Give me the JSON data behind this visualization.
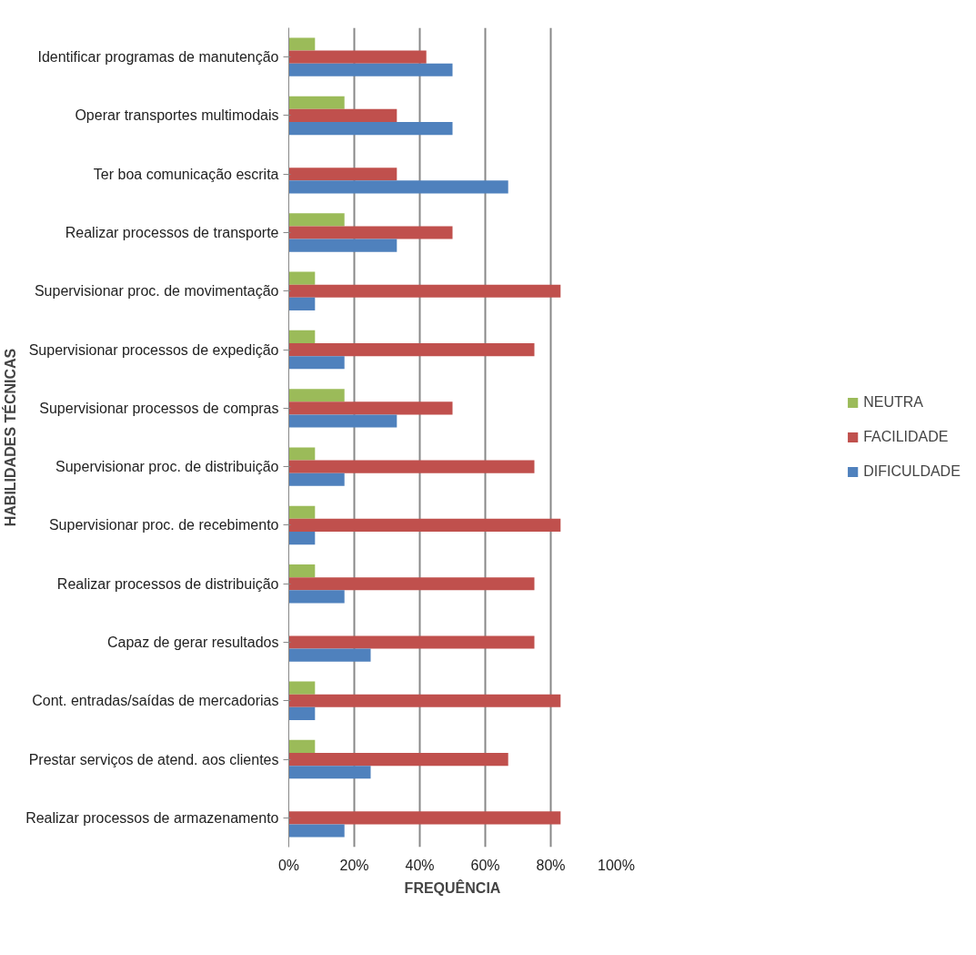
{
  "chart_data": {
    "type": "bar",
    "orientation": "horizontal",
    "xlabel": "FREQUÊNCIA",
    "ylabel": "HABILIDADES TÉCNICAS",
    "categories": [
      "Identificar programas de manutenção",
      "Operar transportes multimodais",
      "Ter boa comunicação escrita",
      "Realizar processos de transporte",
      "Supervisionar proc. de movimentação",
      "Supervisionar processos de expedição",
      "Supervisionar processos de compras",
      "Supervisionar proc. de distribuição",
      "Supervisionar proc. de recebimento",
      "Realizar processos de distribuição",
      "Capaz de gerar resultados",
      "Cont. entradas/saídas de mercadorias",
      "Prestar serviços de atend. aos clientes",
      "Realizar processos de armazenamento"
    ],
    "series": [
      {
        "name": "NEUTRA",
        "color": "#9bbb59",
        "values": [
          8,
          17,
          null,
          17,
          8,
          8,
          17,
          8,
          8,
          8,
          null,
          8,
          8,
          null
        ]
      },
      {
        "name": "FACILIDADE",
        "color": "#c0504d",
        "values": [
          42,
          33,
          33,
          50,
          83,
          75,
          50,
          75,
          83,
          75,
          75,
          83,
          67,
          83
        ]
      },
      {
        "name": "DIFICULDADE",
        "color": "#4f81bd",
        "values": [
          50,
          50,
          67,
          33,
          8,
          17,
          33,
          17,
          8,
          17,
          25,
          8,
          25,
          17
        ]
      }
    ],
    "xlim": [
      0,
      100
    ],
    "xticks": [
      {
        "value": 0,
        "label": "0%"
      },
      {
        "value": 20,
        "label": "20%"
      },
      {
        "value": 40,
        "label": "40%"
      },
      {
        "value": 60,
        "label": "60%"
      },
      {
        "value": 80,
        "label": "80%"
      },
      {
        "value": 100,
        "label": "100%"
      }
    ],
    "grid": "x",
    "legend": "right"
  }
}
